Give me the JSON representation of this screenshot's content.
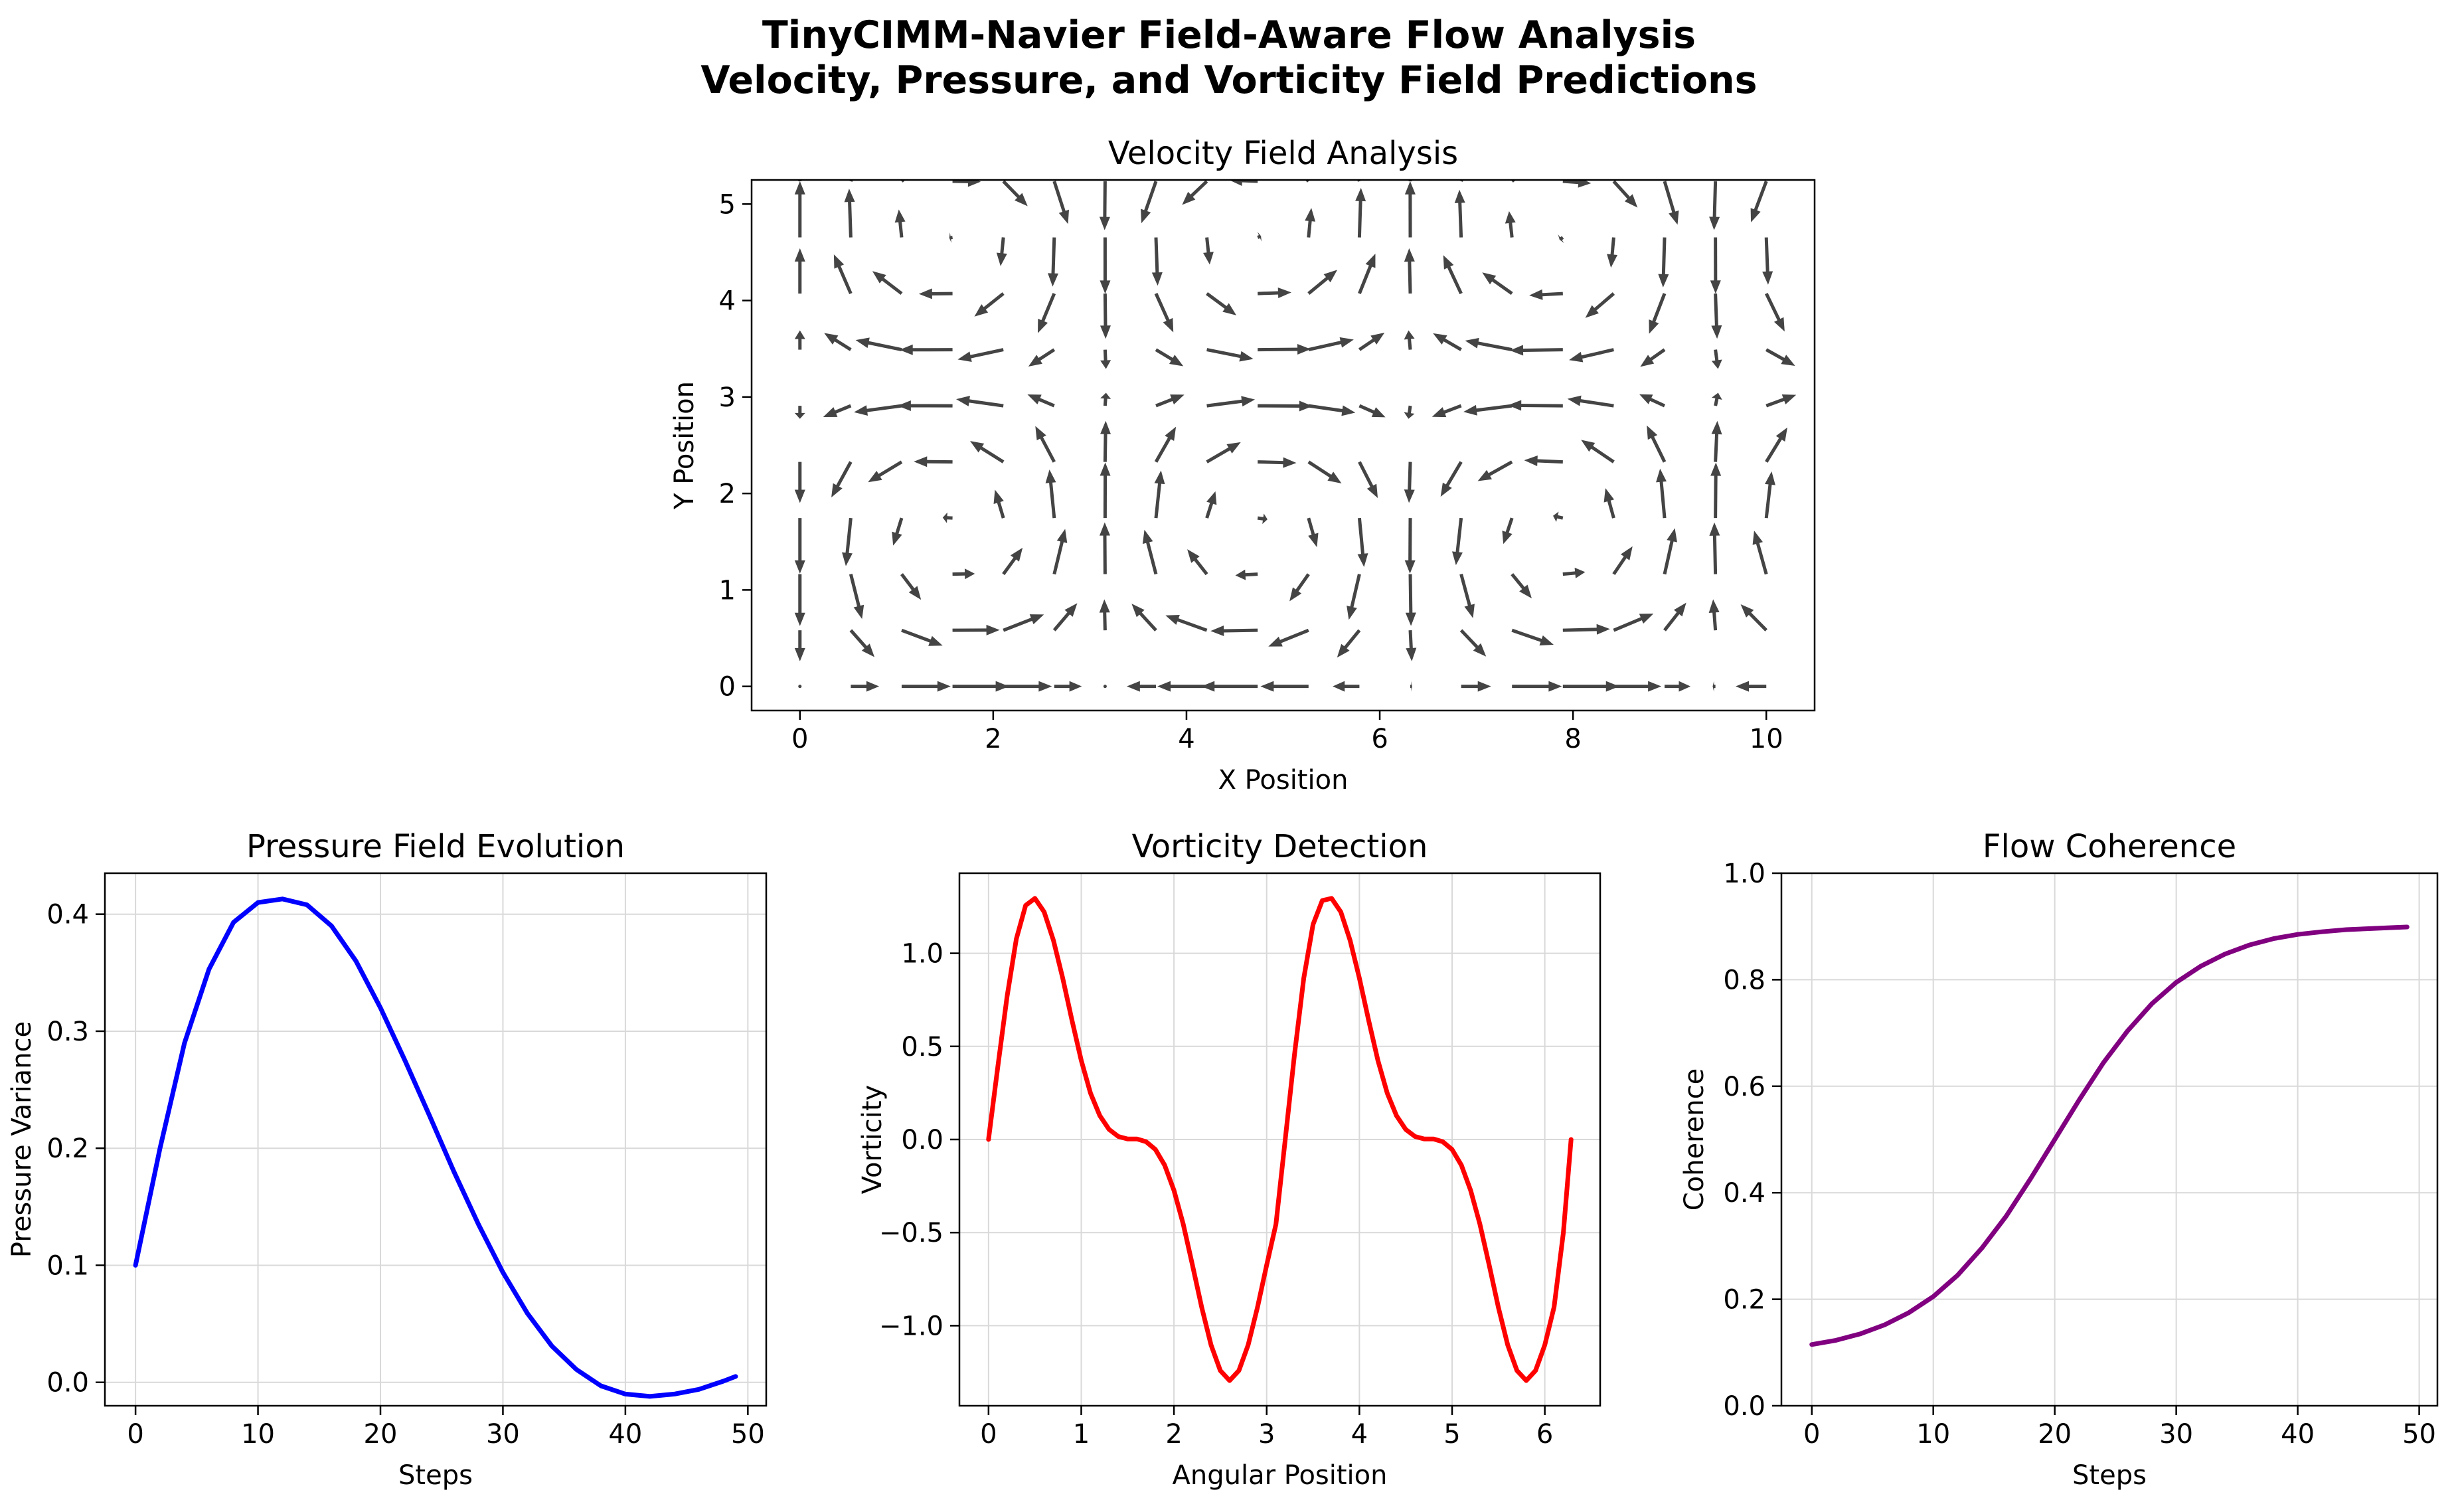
{
  "figure": {
    "title_line1": "TinyCIMM-Navier Field-Aware Flow Analysis",
    "title_line2": "Velocity, Pressure, and Vorticity Field Predictions"
  },
  "colors": {
    "arrow": "#444444",
    "pressure": "#0000ff",
    "vorticity": "#ff0000",
    "coherence": "#800080",
    "grid": "#d9d9d9"
  },
  "chart_data": [
    {
      "type": "quiver",
      "title": "Velocity Field Analysis",
      "xlabel": "X Position",
      "ylabel": "Y Position",
      "xlim": [
        -0.5,
        10.5
      ],
      "ylim": [
        -0.25,
        5.25
      ],
      "xticks": [
        0,
        2,
        4,
        6,
        8,
        10
      ],
      "yticks": [
        0,
        1,
        2,
        3,
        4,
        5
      ],
      "grid": false,
      "field": "u = sin(x)*cos(y), v = -cos(x)*sin(y)",
      "x_range": [
        0,
        10
      ],
      "nx": 20,
      "y_range": [
        0,
        5.236
      ],
      "ny": 10
    },
    {
      "type": "line",
      "title": "Pressure Field Evolution",
      "xlabel": "Steps",
      "ylabel": "Pressure Variance",
      "xlim": [
        -2.5,
        51.5
      ],
      "ylim": [
        -0.02,
        0.435
      ],
      "xticks": [
        0,
        10,
        20,
        30,
        40,
        50
      ],
      "yticks": [
        0.0,
        0.1,
        0.2,
        0.3,
        0.4
      ],
      "ytick_labels": [
        "0.0",
        "0.1",
        "0.2",
        "0.3",
        "0.4"
      ],
      "grid": true,
      "x": [
        0,
        2,
        4,
        6,
        8,
        10,
        12,
        14,
        16,
        18,
        20,
        22,
        24,
        26,
        28,
        30,
        32,
        34,
        36,
        38,
        40,
        42,
        44,
        46,
        48,
        49
      ],
      "y": [
        0.1,
        0.2,
        0.29,
        0.353,
        0.393,
        0.41,
        0.413,
        0.408,
        0.39,
        0.36,
        0.32,
        0.275,
        0.228,
        0.18,
        0.135,
        0.094,
        0.059,
        0.031,
        0.011,
        -0.003,
        -0.01,
        -0.012,
        -0.01,
        -0.006,
        0.001,
        0.005
      ],
      "series": [
        {
          "name": "",
          "color": "#0000ff"
        }
      ]
    },
    {
      "type": "line",
      "title": "Vorticity Detection",
      "xlabel": "Angular Position",
      "ylabel": "Vorticity",
      "xlim": [
        -0.314,
        6.597
      ],
      "ylim": [
        -1.43,
        1.43
      ],
      "xticks": [
        0,
        1,
        2,
        3,
        4,
        5,
        6
      ],
      "yticks": [
        -1.0,
        -0.5,
        0.0,
        0.5,
        1.0
      ],
      "ytick_labels": [
        "−1.0",
        "−0.5",
        "0.0",
        "0.5",
        "1.0"
      ],
      "grid": true,
      "x": [
        0,
        0.1,
        0.2,
        0.3,
        0.4,
        0.5,
        0.6,
        0.7,
        0.8,
        0.9,
        1.0,
        1.1,
        1.2,
        1.3,
        1.4,
        1.5,
        1.6,
        1.7,
        1.8,
        1.9,
        2.0,
        2.1,
        2.2,
        2.3,
        2.4,
        2.5,
        2.6,
        2.7,
        2.8,
        2.9,
        3.0,
        3.1,
        3.2,
        3.3,
        3.4,
        3.5,
        3.6,
        3.7,
        3.8,
        3.9,
        4.0,
        4.1,
        4.2,
        4.3,
        4.4,
        4.5,
        4.6,
        4.7,
        4.8,
        4.9,
        5.0,
        5.1,
        5.2,
        5.3,
        5.4,
        5.5,
        5.6,
        5.7,
        5.8,
        5.9,
        6.0,
        6.1,
        6.2,
        6.283
      ],
      "y": [
        0,
        0.39,
        0.769,
        1.077,
        1.257,
        1.295,
        1.222,
        1.069,
        0.866,
        0.64,
        0.424,
        0.249,
        0.128,
        0.054,
        0.016,
        0.003,
        0.003,
        -0.012,
        -0.054,
        -0.138,
        -0.273,
        -0.455,
        -0.675,
        -0.903,
        -1.104,
        -1.241,
        -1.295,
        -1.241,
        -1.104,
        -0.903,
        -0.675,
        -0.455,
        0.0,
        0.455,
        0.866,
        1.155,
        1.283,
        1.295,
        1.222,
        1.069,
        0.866,
        0.64,
        0.424,
        0.249,
        0.128,
        0.054,
        0.016,
        0.003,
        0.003,
        -0.012,
        -0.054,
        -0.138,
        -0.273,
        -0.455,
        -0.675,
        -0.903,
        -1.104,
        -1.241,
        -1.295,
        -1.241,
        -1.104,
        -0.9,
        -0.5,
        0.0
      ],
      "series": [
        {
          "name": "",
          "color": "#ff0000"
        }
      ]
    },
    {
      "type": "line",
      "title": "Flow Coherence",
      "xlabel": "Steps",
      "ylabel": "Coherence",
      "xlim": [
        -2.5,
        51.5
      ],
      "ylim": [
        0.0,
        1.0
      ],
      "xticks": [
        0,
        10,
        20,
        30,
        40,
        50
      ],
      "yticks": [
        0.0,
        0.2,
        0.4,
        0.6,
        0.8,
        1.0
      ],
      "ytick_labels": [
        "0.0",
        "0.2",
        "0.4",
        "0.6",
        "0.8",
        "1.0"
      ],
      "grid": true,
      "x": [
        0,
        2,
        4,
        6,
        8,
        10,
        12,
        14,
        16,
        18,
        20,
        22,
        24,
        26,
        28,
        30,
        32,
        34,
        36,
        38,
        40,
        42,
        44,
        46,
        48,
        49
      ],
      "y": [
        0.115,
        0.123,
        0.135,
        0.152,
        0.175,
        0.205,
        0.245,
        0.296,
        0.356,
        0.426,
        0.5,
        0.574,
        0.644,
        0.704,
        0.755,
        0.795,
        0.825,
        0.848,
        0.865,
        0.877,
        0.885,
        0.89,
        0.894,
        0.896,
        0.898,
        0.899
      ],
      "series": [
        {
          "name": "",
          "color": "#800080"
        }
      ]
    }
  ]
}
